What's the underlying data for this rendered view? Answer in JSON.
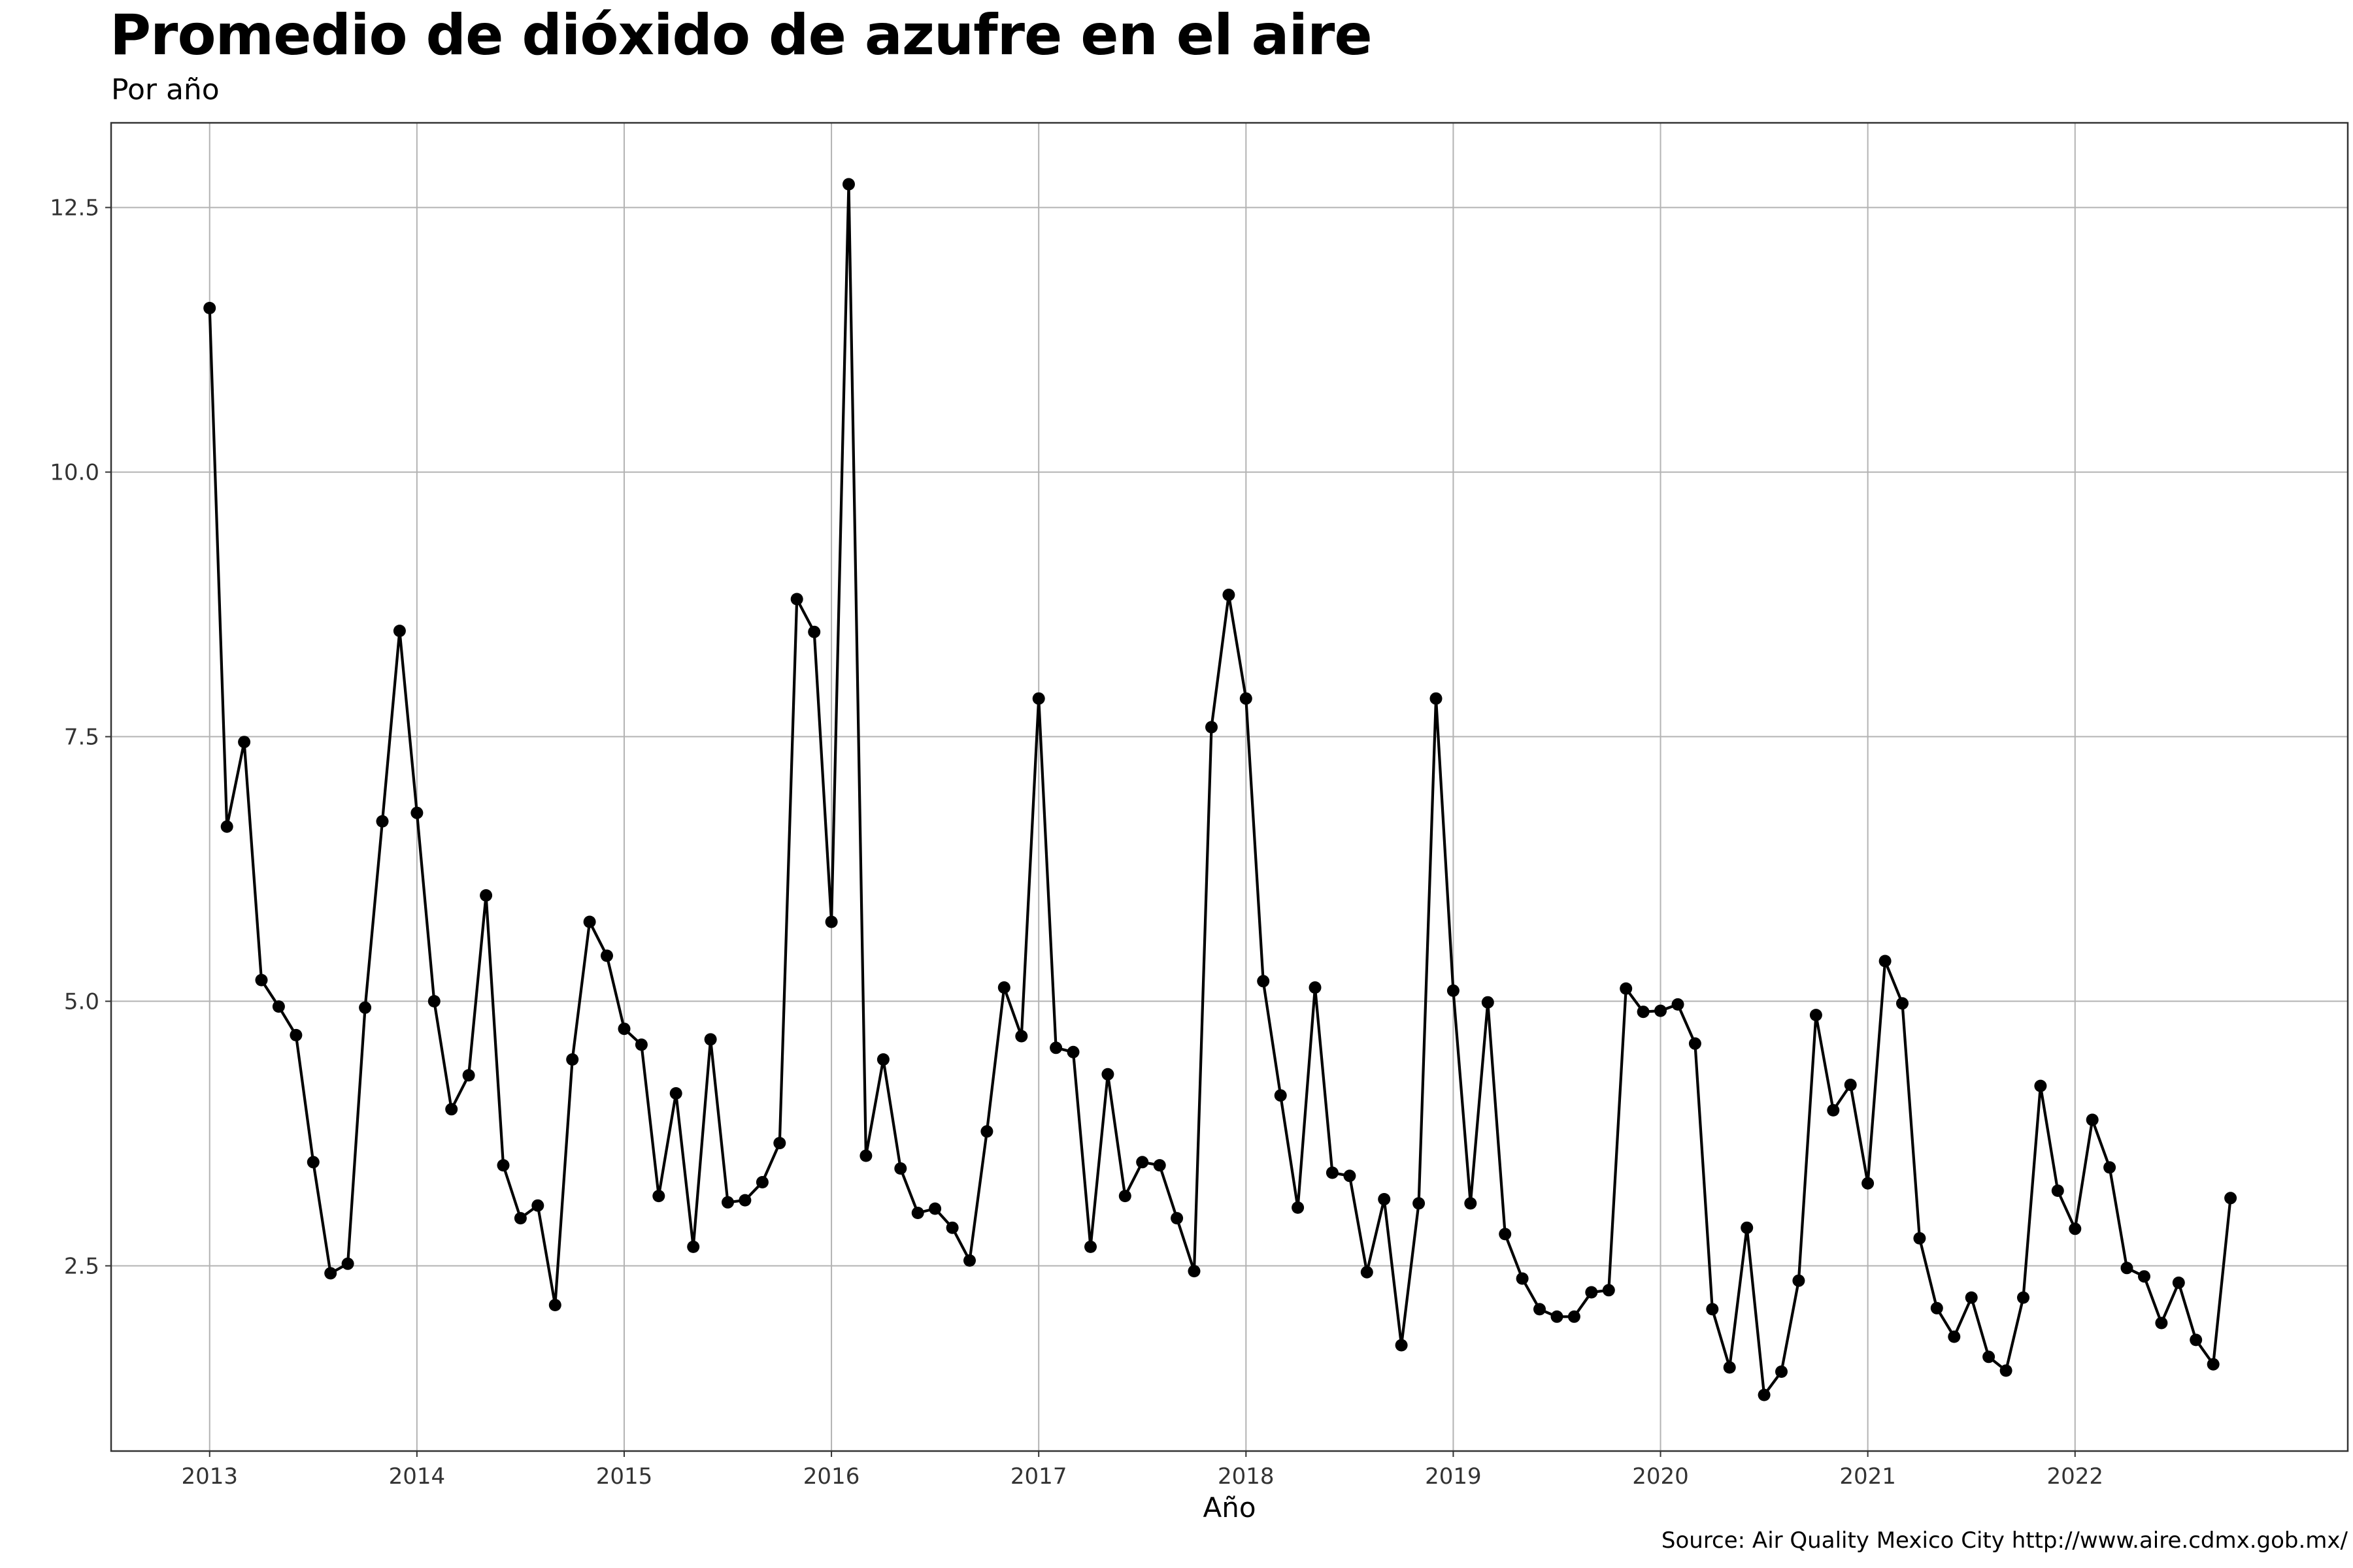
{
  "chart_data": {
    "type": "line",
    "title": "Promedio de dióxido de azufre en el aire",
    "subtitle": "Por año",
    "xlabel": "Año",
    "ylabel": "",
    "source": "Source: Air Quality Mexico City http://www.aire.cdmx.gob.mx/",
    "x_ticks": [
      "2013",
      "2014",
      "2015",
      "2016",
      "2017",
      "2018",
      "2019",
      "2020",
      "2021",
      "2022"
    ],
    "y_ticks": [
      "2.5",
      "5.0",
      "7.5",
      "10.0",
      "12.5"
    ],
    "xlim": [
      "2012-07-10",
      "2023-04-25"
    ],
    "ylim": [
      0.75,
      13.3
    ],
    "grid": true,
    "markers": true,
    "series": [
      {
        "color": "#000000",
        "points": [
          {
            "x": "2013-01",
            "y": 11.55
          },
          {
            "x": "2013-02",
            "y": 6.65
          },
          {
            "x": "2013-03",
            "y": 7.45
          },
          {
            "x": "2013-04",
            "y": 5.2
          },
          {
            "x": "2013-05",
            "y": 4.95
          },
          {
            "x": "2013-06",
            "y": 4.68
          },
          {
            "x": "2013-07",
            "y": 3.48
          },
          {
            "x": "2013-08",
            "y": 2.43
          },
          {
            "x": "2013-09",
            "y": 2.52
          },
          {
            "x": "2013-10",
            "y": 4.94
          },
          {
            "x": "2013-11",
            "y": 6.7
          },
          {
            "x": "2013-12",
            "y": 8.5
          },
          {
            "x": "2014-01",
            "y": 6.78
          },
          {
            "x": "2014-02",
            "y": 5.0
          },
          {
            "x": "2014-03",
            "y": 3.98
          },
          {
            "x": "2014-04",
            "y": 4.3
          },
          {
            "x": "2014-05",
            "y": 6.0
          },
          {
            "x": "2014-06",
            "y": 3.45
          },
          {
            "x": "2014-07",
            "y": 2.95
          },
          {
            "x": "2014-08",
            "y": 3.07
          },
          {
            "x": "2014-09",
            "y": 2.13
          },
          {
            "x": "2014-10",
            "y": 4.45
          },
          {
            "x": "2014-11",
            "y": 5.75
          },
          {
            "x": "2014-12",
            "y": 5.43
          },
          {
            "x": "2015-01",
            "y": 4.74
          },
          {
            "x": "2015-02",
            "y": 4.59
          },
          {
            "x": "2015-03",
            "y": 3.16
          },
          {
            "x": "2015-04",
            "y": 4.13
          },
          {
            "x": "2015-05",
            "y": 2.68
          },
          {
            "x": "2015-06",
            "y": 4.64
          },
          {
            "x": "2015-07",
            "y": 3.1
          },
          {
            "x": "2015-08",
            "y": 3.12
          },
          {
            "x": "2015-09",
            "y": 3.29
          },
          {
            "x": "2015-10",
            "y": 3.66
          },
          {
            "x": "2015-11",
            "y": 8.8
          },
          {
            "x": "2015-12",
            "y": 8.49
          },
          {
            "x": "2016-01",
            "y": 5.75
          },
          {
            "x": "2016-02",
            "y": 12.72
          },
          {
            "x": "2016-03",
            "y": 3.54
          },
          {
            "x": "2016-04",
            "y": 4.45
          },
          {
            "x": "2016-05",
            "y": 3.42
          },
          {
            "x": "2016-06",
            "y": 3.0
          },
          {
            "x": "2016-07",
            "y": 3.04
          },
          {
            "x": "2016-08",
            "y": 2.86
          },
          {
            "x": "2016-09",
            "y": 2.55
          },
          {
            "x": "2016-10",
            "y": 3.77
          },
          {
            "x": "2016-11",
            "y": 5.13
          },
          {
            "x": "2016-12",
            "y": 4.67
          },
          {
            "x": "2017-01",
            "y": 7.86
          },
          {
            "x": "2017-02",
            "y": 4.56
          },
          {
            "x": "2017-03",
            "y": 4.52
          },
          {
            "x": "2017-04",
            "y": 2.68
          },
          {
            "x": "2017-05",
            "y": 4.31
          },
          {
            "x": "2017-06",
            "y": 3.16
          },
          {
            "x": "2017-07",
            "y": 3.48
          },
          {
            "x": "2017-08",
            "y": 3.45
          },
          {
            "x": "2017-09",
            "y": 2.95
          },
          {
            "x": "2017-10",
            "y": 2.45
          },
          {
            "x": "2017-11",
            "y": 7.59
          },
          {
            "x": "2017-12",
            "y": 8.84
          },
          {
            "x": "2018-01",
            "y": 7.86
          },
          {
            "x": "2018-02",
            "y": 5.19
          },
          {
            "x": "2018-03",
            "y": 4.11
          },
          {
            "x": "2018-04",
            "y": 3.05
          },
          {
            "x": "2018-05",
            "y": 5.13
          },
          {
            "x": "2018-06",
            "y": 3.38
          },
          {
            "x": "2018-07",
            "y": 3.35
          },
          {
            "x": "2018-08",
            "y": 2.44
          },
          {
            "x": "2018-09",
            "y": 3.13
          },
          {
            "x": "2018-10",
            "y": 1.75
          },
          {
            "x": "2018-11",
            "y": 3.09
          },
          {
            "x": "2018-12",
            "y": 7.86
          },
          {
            "x": "2019-01",
            "y": 5.1
          },
          {
            "x": "2019-02",
            "y": 3.09
          },
          {
            "x": "2019-03",
            "y": 4.99
          },
          {
            "x": "2019-04",
            "y": 2.8
          },
          {
            "x": "2019-05",
            "y": 2.38
          },
          {
            "x": "2019-06",
            "y": 2.09
          },
          {
            "x": "2019-07",
            "y": 2.02
          },
          {
            "x": "2019-08",
            "y": 2.02
          },
          {
            "x": "2019-09",
            "y": 2.25
          },
          {
            "x": "2019-10",
            "y": 2.27
          },
          {
            "x": "2019-11",
            "y": 5.12
          },
          {
            "x": "2019-12",
            "y": 4.9
          },
          {
            "x": "2020-01",
            "y": 4.91
          },
          {
            "x": "2020-02",
            "y": 4.97
          },
          {
            "x": "2020-03",
            "y": 4.6
          },
          {
            "x": "2020-04",
            "y": 2.09
          },
          {
            "x": "2020-05",
            "y": 1.54
          },
          {
            "x": "2020-06",
            "y": 2.86
          },
          {
            "x": "2020-07",
            "y": 1.28
          },
          {
            "x": "2020-08",
            "y": 1.5
          },
          {
            "x": "2020-09",
            "y": 2.36
          },
          {
            "x": "2020-10",
            "y": 4.87
          },
          {
            "x": "2020-11",
            "y": 3.97
          },
          {
            "x": "2020-12",
            "y": 4.21
          },
          {
            "x": "2021-01",
            "y": 3.28
          },
          {
            "x": "2021-02",
            "y": 5.38
          },
          {
            "x": "2021-03",
            "y": 4.98
          },
          {
            "x": "2021-04",
            "y": 2.76
          },
          {
            "x": "2021-05",
            "y": 2.1
          },
          {
            "x": "2021-06",
            "y": 1.83
          },
          {
            "x": "2021-07",
            "y": 2.2
          },
          {
            "x": "2021-08",
            "y": 1.64
          },
          {
            "x": "2021-09",
            "y": 1.51
          },
          {
            "x": "2021-10",
            "y": 2.2
          },
          {
            "x": "2021-11",
            "y": 4.2
          },
          {
            "x": "2021-12",
            "y": 3.21
          },
          {
            "x": "2022-01",
            "y": 2.85
          },
          {
            "x": "2022-02",
            "y": 3.88
          },
          {
            "x": "2022-03",
            "y": 3.43
          },
          {
            "x": "2022-04",
            "y": 2.48
          },
          {
            "x": "2022-05",
            "y": 2.4
          },
          {
            "x": "2022-06",
            "y": 1.96
          },
          {
            "x": "2022-07",
            "y": 2.34
          },
          {
            "x": "2022-08",
            "y": 1.8
          },
          {
            "x": "2022-09",
            "y": 1.57
          },
          {
            "x": "2022-10",
            "y": 3.14
          }
        ]
      }
    ]
  }
}
